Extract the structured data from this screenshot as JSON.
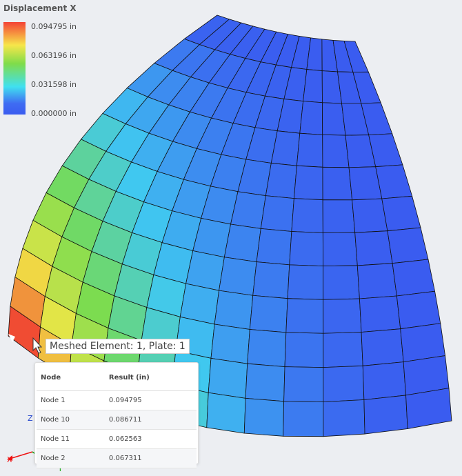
{
  "legend": {
    "title": "Displacement X",
    "labels": [
      "0.094795 in",
      "0.063196 in",
      "0.031598 in",
      "0.000000 in"
    ]
  },
  "tooltip": {
    "title": "Meshed Element: 1, Plate: 1",
    "table": {
      "headers": [
        "Node",
        "Result (in)"
      ],
      "rows": [
        [
          "Node 1",
          "0.094795"
        ],
        [
          "Node 10",
          "0.086711"
        ],
        [
          "Node 11",
          "0.062563"
        ],
        [
          "Node 2",
          "0.067311"
        ]
      ]
    }
  },
  "axes": {
    "z": "Z",
    "x": "X",
    "y": "Y"
  }
}
